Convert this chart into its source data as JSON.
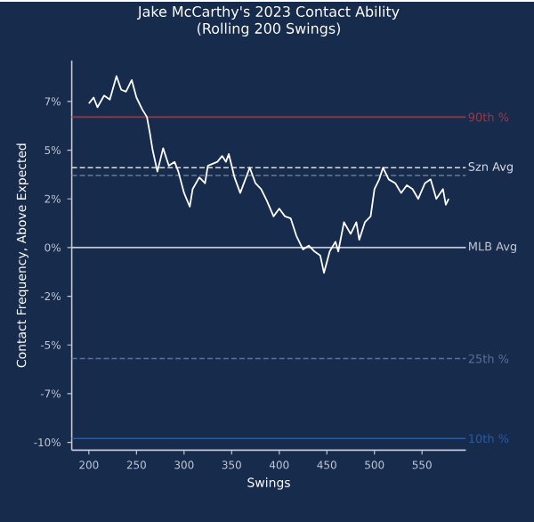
{
  "chart_data": {
    "type": "line",
    "title": "Jake McCarthy's 2023 Contact Ability",
    "subtitle": "(Rolling 200 Swings)",
    "xlabel": "Swings",
    "ylabel": "Contact Frequency, Above Expected",
    "xlim": [
      182,
      596
    ],
    "ylim": [
      -10.4,
      9.6
    ],
    "xticks": [
      200,
      250,
      300,
      350,
      400,
      450,
      500,
      550
    ],
    "yticks": [
      {
        "value": -10,
        "label": "-10%"
      },
      {
        "value": -7.5,
        "label": "-7%"
      },
      {
        "value": -5,
        "label": "-5%"
      },
      {
        "value": -2.5,
        "label": "-2%"
      },
      {
        "value": 0,
        "label": "0%"
      },
      {
        "value": 2.5,
        "label": "2%"
      },
      {
        "value": 5,
        "label": "5%"
      },
      {
        "value": 7.5,
        "label": "7%"
      }
    ],
    "grid": false,
    "marker": "none",
    "line_style": "solid",
    "series": [
      {
        "color": "#ffffff",
        "x": [
          200,
          205,
          209,
          216,
          222,
          229,
          234,
          239,
          245,
          250,
          256,
          261,
          264,
          267,
          272,
          278,
          284,
          290,
          294,
          300,
          306,
          309,
          316,
          322,
          325,
          335,
          340,
          344,
          347,
          353,
          359,
          369,
          375,
          381,
          387,
          394,
          400,
          406,
          412,
          418,
          425,
          431,
          437,
          443,
          447,
          453,
          459,
          462,
          468,
          475,
          481,
          484,
          490,
          496,
          500,
          505,
          509,
          515,
          522,
          528,
          534,
          540,
          546,
          553,
          559,
          565,
          572,
          575,
          578
        ],
        "values": [
          7.4,
          7.7,
          7.2,
          7.8,
          7.6,
          8.8,
          8.1,
          8.0,
          8.6,
          7.7,
          7.1,
          6.7,
          5.9,
          5.0,
          3.9,
          5.1,
          4.2,
          4.4,
          3.9,
          2.8,
          2.1,
          3.0,
          3.6,
          3.3,
          4.2,
          4.4,
          4.7,
          4.4,
          4.8,
          3.6,
          2.8,
          4.1,
          3.3,
          3.0,
          2.4,
          1.6,
          2.0,
          1.6,
          1.5,
          0.6,
          -0.1,
          0.1,
          -0.2,
          -0.4,
          -1.3,
          -0.2,
          0.3,
          -0.2,
          1.3,
          0.7,
          1.3,
          0.4,
          1.3,
          1.6,
          3.0,
          3.5,
          4.1,
          3.5,
          3.3,
          2.8,
          3.2,
          3.0,
          2.5,
          3.3,
          3.5,
          2.5,
          3.0,
          2.2,
          2.5
        ]
      }
    ],
    "ref_lines": [
      {
        "axis": "y",
        "value": 6.7,
        "label": "90th %",
        "color": "#a8343f",
        "line_style": "solid"
      },
      {
        "axis": "y",
        "value": 4.1,
        "label": "Szn Avg",
        "color": "#d8dce6",
        "line_style": "dashed"
      },
      {
        "axis": "y",
        "value": 3.7,
        "color": "#6b7a99",
        "line_style": "dashed"
      },
      {
        "axis": "y",
        "value": 0,
        "label": "MLB Avg",
        "color": "#c3c8d4",
        "line_style": "solid"
      },
      {
        "axis": "y",
        "value": -5.7,
        "label": "25th %",
        "color": "#5a7099",
        "line_style": "dashed"
      },
      {
        "axis": "y",
        "value": -9.8,
        "label": "10th %",
        "color": "#2c5b9c",
        "line_style": "solid"
      }
    ]
  }
}
